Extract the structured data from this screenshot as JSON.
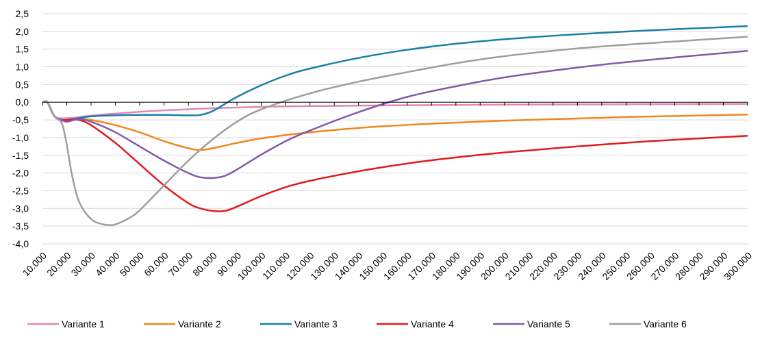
{
  "chart_data": {
    "type": "line",
    "title": "",
    "xlabel": "",
    "ylabel": "",
    "x_tick_labels": [
      "10.000",
      "20.000",
      "30.000",
      "40.000",
      "50.000",
      "60.000",
      "70.000",
      "80.000",
      "90.000",
      "100.000",
      "110.000",
      "120.000",
      "130.000",
      "140.000",
      "150.000",
      "160.000",
      "170.000",
      "180.000",
      "190.000",
      "200.000",
      "210.000",
      "220.000",
      "230.000",
      "240.000",
      "250.000",
      "260.000",
      "270.000",
      "280.000",
      "290.000",
      "300.000"
    ],
    "xlim": [
      10000,
      300000
    ],
    "ylim": [
      -4.0,
      2.5
    ],
    "y_tick_labels": [
      "2,5",
      "2,0",
      "1,5",
      "1,0",
      "0,5",
      "0,0",
      "-0,5",
      "-1,0",
      "-1,5",
      "-2,0",
      "-2,5",
      "-3,0",
      "-3,5",
      "-4,0"
    ],
    "y_ticks": [
      2.5,
      2.0,
      1.5,
      1.0,
      0.5,
      0.0,
      -0.5,
      -1.0,
      -1.5,
      -2.0,
      -2.5,
      -3.0,
      -3.5,
      -4.0
    ],
    "grid": true,
    "legend_position": "bottom",
    "series": [
      {
        "name": "Variante 1",
        "color": "#e586b4",
        "x": [
          10000,
          12000,
          15000,
          20000,
          30000,
          40000,
          50000,
          60000,
          70000,
          80000,
          100000,
          120000,
          150000,
          200000,
          250000,
          300000
        ],
        "y": [
          0,
          0,
          -0.4,
          -0.45,
          -0.38,
          -0.32,
          -0.27,
          -0.23,
          -0.2,
          -0.17,
          -0.13,
          -0.11,
          -0.09,
          -0.07,
          -0.06,
          -0.05
        ]
      },
      {
        "name": "Variante 2",
        "color": "#f0861e",
        "x": [
          10000,
          12000,
          15000,
          18000,
          20000,
          25000,
          30000,
          40000,
          50000,
          60000,
          70000,
          75000,
          80000,
          90000,
          100000,
          120000,
          150000,
          200000,
          250000,
          300000
        ],
        "y": [
          0,
          0,
          -0.4,
          -0.5,
          -0.5,
          -0.48,
          -0.5,
          -0.65,
          -0.85,
          -1.1,
          -1.3,
          -1.35,
          -1.3,
          -1.15,
          -1.02,
          -0.85,
          -0.68,
          -0.52,
          -0.42,
          -0.35
        ]
      },
      {
        "name": "Variante 3",
        "color": "#1a7fa8",
        "x": [
          10000,
          12000,
          15000,
          18000,
          20000,
          25000,
          30000,
          40000,
          50000,
          60000,
          70000,
          75000,
          80000,
          85000,
          90000,
          100000,
          110000,
          120000,
          140000,
          160000,
          180000,
          200000,
          230000,
          260000,
          300000
        ],
        "y": [
          0,
          0,
          -0.4,
          -0.52,
          -0.5,
          -0.45,
          -0.4,
          -0.37,
          -0.36,
          -0.36,
          -0.37,
          -0.36,
          -0.25,
          -0.05,
          0.15,
          0.48,
          0.75,
          0.95,
          1.25,
          1.48,
          1.65,
          1.78,
          1.92,
          2.03,
          2.15
        ]
      },
      {
        "name": "Variante 4",
        "color": "#e31a1c",
        "x": [
          10000,
          12000,
          15000,
          18000,
          20000,
          25000,
          30000,
          40000,
          50000,
          60000,
          70000,
          75000,
          80000,
          85000,
          90000,
          100000,
          110000,
          120000,
          140000,
          160000,
          180000,
          200000,
          230000,
          260000,
          300000
        ],
        "y": [
          0,
          0,
          -0.4,
          -0.5,
          -0.5,
          -0.5,
          -0.65,
          -1.15,
          -1.75,
          -2.35,
          -2.85,
          -3.0,
          -3.07,
          -3.07,
          -2.95,
          -2.65,
          -2.4,
          -2.22,
          -1.95,
          -1.73,
          -1.56,
          -1.42,
          -1.25,
          -1.1,
          -0.95
        ]
      },
      {
        "name": "Variante 5",
        "color": "#8159a8",
        "x": [
          10000,
          12000,
          15000,
          18000,
          20000,
          25000,
          30000,
          40000,
          50000,
          60000,
          70000,
          75000,
          80000,
          85000,
          90000,
          100000,
          110000,
          120000,
          140000,
          160000,
          180000,
          200000,
          230000,
          260000,
          300000
        ],
        "y": [
          0,
          0,
          -0.4,
          -0.5,
          -0.55,
          -0.48,
          -0.55,
          -0.85,
          -1.25,
          -1.65,
          -2.0,
          -2.12,
          -2.14,
          -2.08,
          -1.9,
          -1.48,
          -1.1,
          -0.8,
          -0.28,
          0.15,
          0.45,
          0.7,
          0.98,
          1.2,
          1.45
        ]
      },
      {
        "name": "Variante 6",
        "color": "#a09e98",
        "x": [
          10000,
          12000,
          15000,
          18000,
          20000,
          22000,
          25000,
          30000,
          35000,
          38000,
          40000,
          45000,
          50000,
          60000,
          70000,
          80000,
          90000,
          100000,
          120000,
          140000,
          160000,
          180000,
          200000,
          230000,
          260000,
          300000
        ],
        "y": [
          0,
          0,
          -0.4,
          -0.6,
          -1.2,
          -2.0,
          -2.8,
          -3.3,
          -3.45,
          -3.47,
          -3.45,
          -3.3,
          -3.05,
          -2.35,
          -1.65,
          -1.05,
          -0.55,
          -0.2,
          0.25,
          0.58,
          0.85,
          1.1,
          1.3,
          1.52,
          1.67,
          1.85
        ]
      }
    ]
  }
}
